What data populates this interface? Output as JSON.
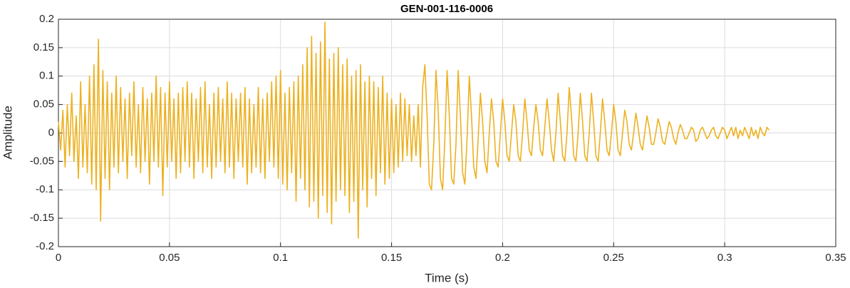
{
  "chart_data": {
    "type": "line",
    "title": "GEN-001-116-0006",
    "xlabel": "Time (s)",
    "ylabel": "Amplitude",
    "xlim": [
      0,
      0.35
    ],
    "xticks": [
      0,
      0.05,
      0.1,
      0.15,
      0.2,
      0.25,
      0.3,
      0.35
    ],
    "ylim": [
      -0.2,
      0.2
    ],
    "yticks": [
      -0.2,
      -0.15,
      -0.1,
      -0.05,
      0,
      0.05,
      0.1,
      0.15,
      0.2
    ],
    "grid": true,
    "x": [
      0,
      0.001,
      0.002,
      0.003,
      0.004,
      0.005,
      0.006,
      0.007,
      0.008,
      0.009,
      0.01,
      0.011,
      0.012,
      0.013,
      0.014,
      0.015,
      0.016,
      0.017,
      0.018,
      0.019,
      0.02,
      0.021,
      0.022,
      0.023,
      0.024,
      0.025,
      0.026,
      0.027,
      0.028,
      0.029,
      0.03,
      0.031,
      0.032,
      0.033,
      0.034,
      0.035,
      0.036,
      0.037,
      0.038,
      0.039,
      0.04,
      0.041,
      0.042,
      0.043,
      0.044,
      0.045,
      0.046,
      0.047,
      0.048,
      0.049,
      0.05,
      0.051,
      0.052,
      0.053,
      0.054,
      0.055,
      0.056,
      0.057,
      0.058,
      0.059,
      0.06,
      0.061,
      0.062,
      0.063,
      0.064,
      0.065,
      0.066,
      0.067,
      0.068,
      0.069,
      0.07,
      0.071,
      0.072,
      0.073,
      0.074,
      0.075,
      0.076,
      0.077,
      0.078,
      0.079,
      0.08,
      0.081,
      0.082,
      0.083,
      0.084,
      0.085,
      0.086,
      0.087,
      0.088,
      0.089,
      0.09,
      0.091,
      0.092,
      0.093,
      0.094,
      0.095,
      0.096,
      0.097,
      0.098,
      0.099,
      0.1,
      0.101,
      0.102,
      0.103,
      0.104,
      0.105,
      0.106,
      0.107,
      0.108,
      0.109,
      0.11,
      0.111,
      0.112,
      0.113,
      0.114,
      0.115,
      0.116,
      0.117,
      0.118,
      0.119,
      0.12,
      0.121,
      0.122,
      0.123,
      0.124,
      0.125,
      0.126,
      0.127,
      0.128,
      0.129,
      0.13,
      0.131,
      0.132,
      0.133,
      0.134,
      0.135,
      0.136,
      0.137,
      0.138,
      0.139,
      0.14,
      0.141,
      0.142,
      0.143,
      0.144,
      0.145,
      0.146,
      0.147,
      0.148,
      0.149,
      0.15,
      0.151,
      0.152,
      0.153,
      0.154,
      0.155,
      0.156,
      0.157,
      0.158,
      0.159,
      0.16,
      0.161,
      0.162,
      0.163,
      0.164,
      0.165,
      0.166,
      0.167,
      0.168,
      0.169,
      0.17,
      0.171,
      0.172,
      0.173,
      0.174,
      0.175,
      0.176,
      0.177,
      0.178,
      0.179,
      0.18,
      0.181,
      0.182,
      0.183,
      0.184,
      0.185,
      0.186,
      0.187,
      0.188,
      0.189,
      0.19,
      0.191,
      0.192,
      0.193,
      0.194,
      0.195,
      0.196,
      0.197,
      0.198,
      0.199,
      0.2,
      0.201,
      0.202,
      0.203,
      0.204,
      0.205,
      0.206,
      0.207,
      0.208,
      0.209,
      0.21,
      0.211,
      0.212,
      0.213,
      0.214,
      0.215,
      0.216,
      0.217,
      0.218,
      0.219,
      0.22,
      0.221,
      0.222,
      0.223,
      0.224,
      0.225,
      0.226,
      0.227,
      0.228,
      0.229,
      0.23,
      0.231,
      0.232,
      0.233,
      0.234,
      0.235,
      0.236,
      0.237,
      0.238,
      0.239,
      0.24,
      0.241,
      0.242,
      0.243,
      0.244,
      0.245,
      0.246,
      0.247,
      0.248,
      0.249,
      0.25,
      0.251,
      0.252,
      0.253,
      0.254,
      0.255,
      0.256,
      0.257,
      0.258,
      0.259,
      0.26,
      0.261,
      0.262,
      0.263,
      0.264,
      0.265,
      0.266,
      0.267,
      0.268,
      0.269,
      0.27,
      0.271,
      0.272,
      0.273,
      0.274,
      0.275,
      0.276,
      0.277,
      0.278,
      0.279,
      0.28,
      0.281,
      0.282,
      0.283,
      0.284,
      0.285,
      0.286,
      0.287,
      0.288,
      0.289,
      0.29,
      0.291,
      0.292,
      0.293,
      0.294,
      0.295,
      0.296,
      0.297,
      0.298,
      0.299,
      0.3,
      0.301,
      0.302,
      0.303,
      0.304,
      0.305,
      0.306,
      0.307,
      0.308,
      0.309,
      0.31,
      0.311,
      0.312,
      0.313,
      0.314,
      0.315,
      0.316,
      0.317,
      0.318,
      0.319,
      0.32
    ],
    "series": [
      {
        "color": "#edb120",
        "values": [
          0.02,
          -0.03,
          0.04,
          -0.06,
          0.05,
          -0.04,
          0.07,
          -0.05,
          0.03,
          -0.08,
          0.09,
          -0.06,
          0.05,
          -0.07,
          0.1,
          -0.09,
          0.12,
          -0.1,
          0.165,
          -0.155,
          0.11,
          -0.08,
          0.09,
          -0.1,
          0.07,
          -0.06,
          0.1,
          -0.07,
          0.08,
          -0.05,
          0.06,
          -0.08,
          0.07,
          -0.04,
          0.09,
          -0.06,
          0.05,
          -0.07,
          0.08,
          -0.05,
          0.06,
          -0.09,
          0.07,
          -0.05,
          0.1,
          -0.06,
          0.08,
          -0.11,
          0.07,
          -0.06,
          0.09,
          -0.05,
          0.06,
          -0.08,
          0.07,
          -0.07,
          0.08,
          -0.05,
          0.09,
          -0.06,
          0.07,
          -0.08,
          0.06,
          -0.05,
          0.08,
          -0.07,
          0.09,
          -0.06,
          0.05,
          -0.08,
          0.07,
          -0.06,
          0.08,
          -0.05,
          0.06,
          -0.07,
          0.09,
          -0.06,
          0.07,
          -0.08,
          0.06,
          -0.05,
          0.07,
          -0.06,
          0.08,
          -0.09,
          0.06,
          -0.07,
          0.05,
          -0.06,
          0.08,
          -0.07,
          0.06,
          -0.08,
          0.07,
          -0.05,
          0.09,
          -0.06,
          0.1,
          -0.08,
          0.11,
          -0.09,
          0.07,
          -0.1,
          0.08,
          -0.07,
          0.09,
          -0.12,
          0.1,
          -0.08,
          0.12,
          -0.1,
          0.15,
          -0.13,
          0.17,
          -0.12,
          0.14,
          -0.15,
          0.16,
          -0.11,
          0.195,
          -0.14,
          0.13,
          -0.16,
          0.14,
          -0.12,
          0.15,
          -0.1,
          0.12,
          -0.11,
          0.13,
          -0.14,
          0.1,
          -0.12,
          0.11,
          -0.185,
          0.12,
          -0.1,
          0.09,
          -0.13,
          0.1,
          -0.08,
          0.09,
          -0.11,
          0.08,
          -0.07,
          0.1,
          -0.09,
          0.07,
          -0.08,
          0.06,
          -0.07,
          0.05,
          -0.06,
          0.07,
          -0.05,
          0.06,
          -0.04,
          0.05,
          -0.05,
          0.03,
          -0.04,
          0.05,
          -0.06,
          0.08,
          0.12,
          0.03,
          -0.09,
          -0.1,
          -0.02,
          0.11,
          0.04,
          -0.08,
          -0.1,
          -0.01,
          0.11,
          0.03,
          -0.08,
          -0.09,
          -0.02,
          0.11,
          0.03,
          -0.07,
          -0.09,
          -0.01,
          0.1,
          0.03,
          -0.06,
          -0.08,
          -0.01,
          0.07,
          0.02,
          -0.05,
          -0.07,
          0,
          0.06,
          0.02,
          -0.05,
          -0.06,
          0,
          0.06,
          0.02,
          -0.04,
          -0.05,
          0,
          0.05,
          0.02,
          -0.04,
          -0.05,
          0,
          0.06,
          0.02,
          -0.03,
          -0.04,
          0.01,
          0.05,
          0.02,
          -0.03,
          -0.04,
          0.01,
          0.06,
          0.02,
          -0.03,
          -0.05,
          0,
          0.07,
          0.02,
          -0.04,
          -0.05,
          0,
          0.08,
          0.03,
          -0.04,
          -0.05,
          0,
          0.07,
          0.02,
          -0.04,
          -0.05,
          0,
          0.07,
          0.02,
          -0.04,
          -0.05,
          0,
          0.06,
          0.02,
          -0.03,
          -0.04,
          0,
          0.05,
          0.02,
          -0.03,
          -0.04,
          0,
          0.04,
          0.02,
          -0.02,
          -0.03,
          0,
          0.035,
          0.01,
          -0.02,
          -0.03,
          0,
          0.03,
          0.01,
          -0.02,
          -0.02,
          0,
          0.025,
          0.01,
          -0.015,
          -0.02,
          0,
          0.02,
          0.01,
          -0.01,
          -0.02,
          0,
          0.015,
          0.005,
          -0.01,
          -0.01,
          0,
          0.01,
          0.005,
          -0.015,
          -0.01,
          0.005,
          0.01,
          0,
          -0.01,
          -0.005,
          0.005,
          0.01,
          -0.005,
          -0.01,
          0,
          0.01,
          0.005,
          -0.01,
          0,
          0.01,
          -0.005,
          0.01,
          -0.01,
          0.005,
          -0.005,
          0.01,
          0,
          -0.01,
          0.01,
          -0.005,
          0.005,
          -0.01,
          0.01,
          0,
          -0.005,
          0.01,
          0.005
        ]
      }
    ]
  }
}
